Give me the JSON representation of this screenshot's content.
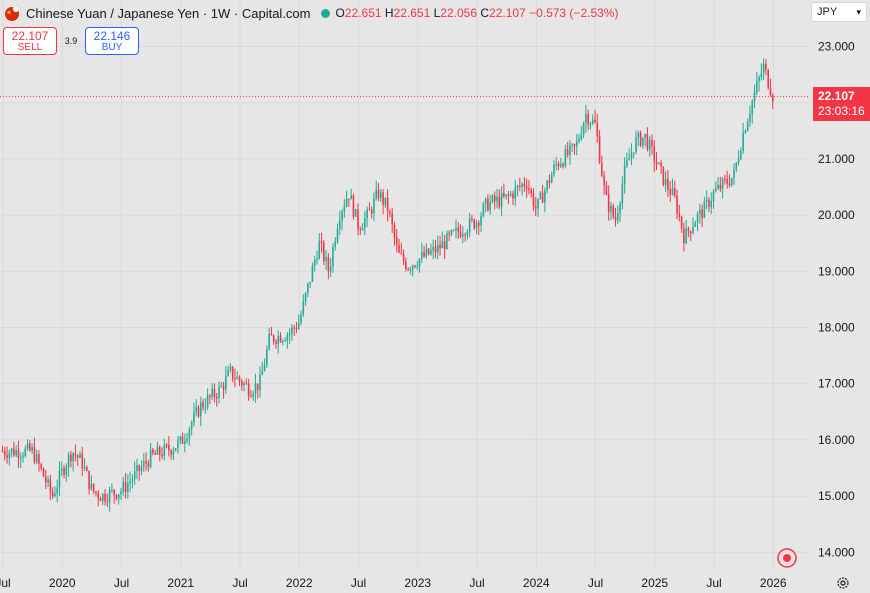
{
  "legend": {
    "title": "Chinese Yuan / Japanese Yen · 1W · Capital.com",
    "o_label": "O",
    "o_value": "22.651",
    "h_label": "H",
    "h_value": "22.651",
    "l_label": "L",
    "l_value": "22.056",
    "c_label": "C",
    "c_value": "22.107",
    "change": "−0.573 (−2.53%)"
  },
  "trade": {
    "sell_price": "22.107",
    "sell_label": "SELL",
    "spread": "3.9",
    "buy_price": "22.146",
    "buy_label": "BUY"
  },
  "currency": {
    "value": "JPY"
  },
  "price_tag": {
    "price": "22.107",
    "countdown": "23:03:16"
  },
  "colors": {
    "up": "#22ab94",
    "down": "#f23645",
    "background": "#e6e6e6",
    "grid": "#d9d9d9"
  },
  "icons": {
    "logo": "cny-flag-icon",
    "target": "target-icon",
    "settings": "gear-icon"
  },
  "chart_data": {
    "type": "candlestick",
    "title": "Chinese Yuan / Japanese Yen · 1W · Capital.com",
    "xlabel": "",
    "ylabel": "",
    "ylim": [
      13.7,
      23.3
    ],
    "y_ticks": [
      "23.000",
      "22.000",
      "21.000",
      "20.000",
      "19.000",
      "18.000",
      "17.000",
      "16.000",
      "15.000",
      "14.000"
    ],
    "y_tick_values": [
      23,
      22,
      21,
      20,
      19,
      18,
      17,
      16,
      15,
      14
    ],
    "x_ticks": [
      {
        "label": "Jul",
        "date": "2019-07"
      },
      {
        "label": "2020",
        "date": "2020-01"
      },
      {
        "label": "Jul",
        "date": "2020-07"
      },
      {
        "label": "2021",
        "date": "2021-01"
      },
      {
        "label": "Jul",
        "date": "2021-07"
      },
      {
        "label": "2022",
        "date": "2022-01"
      },
      {
        "label": "Jul",
        "date": "2022-07"
      },
      {
        "label": "2023",
        "date": "2023-01"
      },
      {
        "label": "Jul",
        "date": "2023-07"
      },
      {
        "label": "2024",
        "date": "2024-01"
      },
      {
        "label": "Jul",
        "date": "2024-07"
      },
      {
        "label": "2025",
        "date": "2025-01"
      },
      {
        "label": "Jul",
        "date": "2025-07"
      },
      {
        "label": "2026",
        "date": "2026-01"
      }
    ],
    "last_price": 22.107,
    "close_path": [
      [
        "2019-10",
        15.8
      ],
      [
        "2019-12",
        15.0
      ],
      [
        "2020-01",
        15.45
      ],
      [
        "2020-02",
        15.8
      ],
      [
        "2020-03",
        15.6
      ],
      [
        "2020-04",
        15.1
      ],
      [
        "2020-05",
        15.0
      ],
      [
        "2020-07",
        15.1
      ],
      [
        "2020-08",
        15.3
      ],
      [
        "2020-10",
        15.7
      ],
      [
        "2020-12",
        15.85
      ],
      [
        "2021-01",
        15.95
      ],
      [
        "2021-03",
        16.6
      ],
      [
        "2021-05",
        16.9
      ],
      [
        "2021-06",
        17.2
      ],
      [
        "2021-08",
        16.9
      ],
      [
        "2021-09",
        17.0
      ],
      [
        "2021-10",
        17.8
      ],
      [
        "2021-12",
        17.9
      ],
      [
        "2022-01",
        18.1
      ],
      [
        "2022-03",
        19.5
      ],
      [
        "2022-04",
        19.0
      ],
      [
        "2022-05",
        20.0
      ],
      [
        "2022-06",
        20.4
      ],
      [
        "2022-07",
        19.8
      ],
      [
        "2022-08",
        20.0
      ],
      [
        "2022-09",
        20.4
      ],
      [
        "2022-10",
        20.1
      ],
      [
        "2022-11",
        19.3
      ],
      [
        "2022-12",
        19.1
      ],
      [
        "2023-01",
        19.2
      ],
      [
        "2023-03",
        19.4
      ],
      [
        "2023-05",
        19.7
      ],
      [
        "2023-07",
        19.9
      ],
      [
        "2023-08",
        20.2
      ],
      [
        "2023-10",
        20.3
      ],
      [
        "2023-12",
        20.6
      ],
      [
        "2024-01",
        20.1
      ],
      [
        "2024-02",
        20.5
      ],
      [
        "2024-03",
        20.9
      ],
      [
        "2024-05",
        21.2
      ],
      [
        "2024-06",
        21.8
      ],
      [
        "2024-07",
        21.6
      ],
      [
        "2024-08",
        20.3
      ],
      [
        "2024-09",
        19.9
      ],
      [
        "2024-10",
        20.8
      ],
      [
        "2024-11",
        21.3
      ],
      [
        "2024-12",
        21.4
      ],
      [
        "2025-01",
        21.0
      ],
      [
        "2025-02",
        20.6
      ],
      [
        "2025-03",
        20.3
      ],
      [
        "2025-04",
        19.6
      ],
      [
        "2025-05",
        19.9
      ],
      [
        "2025-06",
        20.1
      ],
      [
        "2025-07",
        20.4
      ],
      [
        "2025-09",
        20.7
      ],
      [
        "2025-10",
        21.5
      ],
      [
        "2025-11",
        22.1
      ],
      [
        "2025-12",
        22.65
      ],
      [
        "2026-01",
        22.107
      ]
    ]
  }
}
